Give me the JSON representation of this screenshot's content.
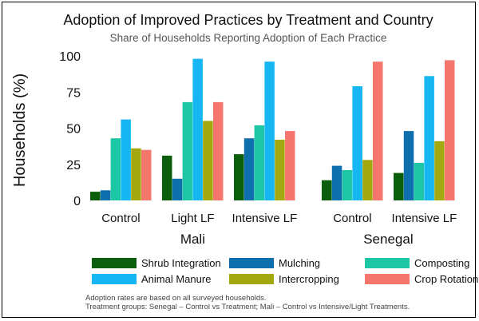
{
  "chart_data": {
    "type": "bar",
    "title": "Adoption of Improved Practices by Treatment and Country",
    "subtitle": "Share of Households Reporting Adoption of Each Practice",
    "ylabel": "Households (%)",
    "ylim": [
      0,
      100
    ],
    "yticks": [
      "0",
      "25",
      "50",
      "75",
      "100"
    ],
    "grid": false,
    "legend_position": "bottom",
    "countries": [
      {
        "name": "Mali",
        "categories": [
          "Control",
          "Light LF",
          "Intensive LF"
        ]
      },
      {
        "name": "Senegal",
        "categories": [
          "Control",
          "Intensive LF"
        ]
      }
    ],
    "categories": [
      "Control",
      "Light LF",
      "Intensive LF",
      "Control",
      "Intensive LF"
    ],
    "series": [
      {
        "name": "Shrub Integration",
        "color": "#0b5e0b",
        "values": [
          6,
          31,
          32,
          14,
          19
        ]
      },
      {
        "name": "Mulching",
        "color": "#0d6fab",
        "values": [
          7,
          15,
          43,
          24,
          48
        ]
      },
      {
        "name": "Composting",
        "color": "#1dc7a6",
        "values": [
          43,
          68,
          52,
          21,
          26
        ]
      },
      {
        "name": "Animal Manure",
        "color": "#16b6f2",
        "values": [
          56,
          98,
          96,
          79,
          86
        ]
      },
      {
        "name": "Intercropping",
        "color": "#a3a80f",
        "values": [
          36,
          55,
          42,
          28,
          41
        ]
      },
      {
        "name": "Crop Rotation",
        "color": "#f4766d",
        "values": [
          35,
          68,
          48,
          96,
          97
        ]
      }
    ],
    "caption": [
      "Adoption rates are based on all surveyed households.",
      "Treatment groups: Senegal – Control vs Treatment; Mali – Control vs Intensive/Light Treatments."
    ]
  }
}
